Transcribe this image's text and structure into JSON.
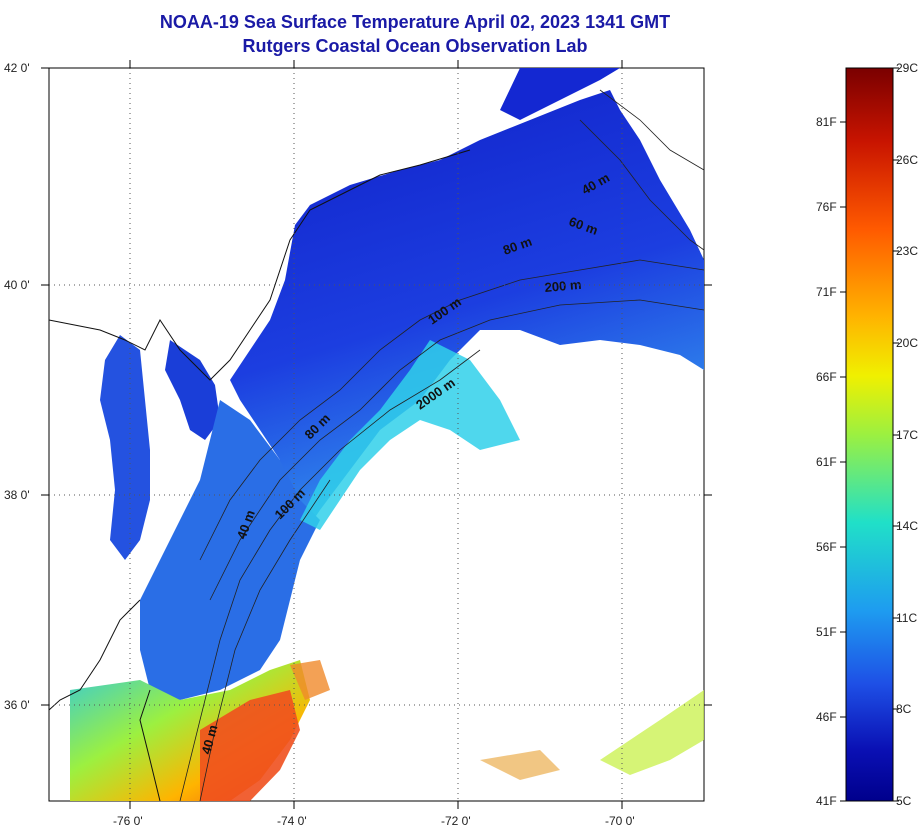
{
  "title": {
    "line1": "NOAA-19 Sea Surface Temperature April 02, 2023 1341 GMT",
    "line2": "Rutgers Coastal Ocean Observation Lab"
  },
  "axes": {
    "lat_labels": [
      "42 0'",
      "40 0'",
      "38 0'",
      "36 0'"
    ],
    "lon_labels": [
      "-76 0'",
      "-74 0'",
      "-72 0'",
      "-70 0'"
    ]
  },
  "contour_labels": [
    "40 m",
    "60 m",
    "80 m",
    "200 m",
    "100 m",
    "2000 m",
    "80 m",
    "100 m",
    "40 m",
    "40 m"
  ],
  "colorbar": {
    "celsius_labels": [
      "29C",
      "26C",
      "23C",
      "20C",
      "17C",
      "14C",
      "11C",
      "8C",
      "5C"
    ],
    "fahrenheit_labels": [
      "81F",
      "76F",
      "71F",
      "66F",
      "61F",
      "56F",
      "51F",
      "46F",
      "41F"
    ],
    "colors": [
      "#7a0000",
      "#c81400",
      "#ff5a00",
      "#ffb400",
      "#f0f000",
      "#9cf040",
      "#20e0c8",
      "#1e9cf0",
      "#1e50e6",
      "#0a10b4",
      "#00008c"
    ]
  },
  "colors": {
    "title": "#1a1aa6",
    "cold_water": "#1428d2",
    "cool_water": "#2a6ee6",
    "mid_water": "#30d8e8",
    "warm_water": "#f0602a"
  }
}
